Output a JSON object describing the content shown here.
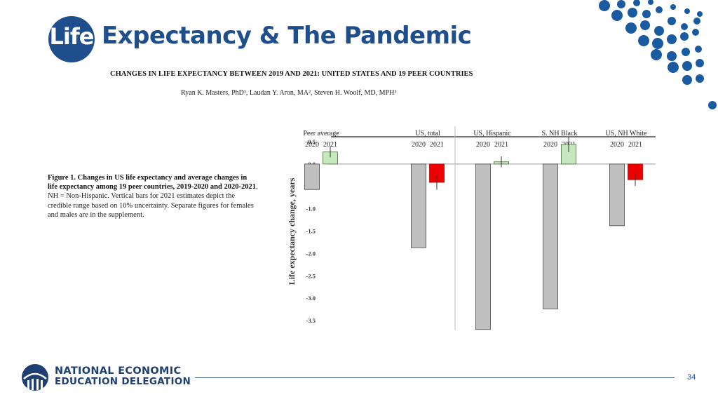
{
  "header": {
    "logo_word": "Life",
    "title_rest": "Expectancy & The Pandemic"
  },
  "paper": {
    "title": "CHANGES IN LIFE EXPECTANCY BETWEEN 2019 AND 2021: UNITED STATES AND 19 PEER COUNTRIES",
    "authors": "Ryan K. Masters, PhD¹, Laudan Y. Aron, MA², Steven H. Woolf, MD, MPH³"
  },
  "caption": {
    "bold": "Figure 1. Changes in US life expectancy and average changes in life expectancy among 19 peer countries, 2019-2020 and 2020-2021",
    "rest": ". NH = Non-Hispanic. Vertical bars for 2021 estimates depict the credible range based on 10% uncertainty. Separate figures for females and males are in the supplement."
  },
  "chart_data": {
    "type": "bar",
    "title": "",
    "xlabel": "",
    "ylabel": "Life expectancy change, years",
    "ylim": [
      -3.5,
      0.5
    ],
    "yticks": [
      "0.5",
      "0.0",
      "-0.5",
      "-1.0",
      "-1.5",
      "-2.0",
      "-2.5",
      "-3.0",
      "-3.5"
    ],
    "groups": [
      {
        "name": "Peer average",
        "labels": [
          "2020",
          "2021"
        ],
        "values": [
          -0.57,
          0.27
        ]
      },
      {
        "name": "US, total",
        "labels": [
          "2020",
          "2021"
        ],
        "values": [
          -1.87,
          -0.41
        ]
      },
      {
        "name": "US, Hispanic",
        "labels": [
          "2020",
          "2021"
        ],
        "values": [
          -3.7,
          0.05
        ]
      },
      {
        "name": "S. NH Black",
        "labels": [
          "2020",
          "2021"
        ],
        "values": [
          -3.24,
          0.44
        ]
      },
      {
        "name": "US, NH White",
        "labels": [
          "2020",
          "2021"
        ],
        "values": [
          -1.38,
          -0.35
        ]
      }
    ],
    "bar_colors": {
      "2020": "#c0c0c0",
      "2021_positive": "#c6e8bf",
      "2021_negative": "#ee0000"
    },
    "gridlines": false,
    "legend": "none"
  },
  "footer": {
    "org_line1": "NATIONAL ECONOMIC",
    "org_line2": "EDUCATION DELEGATION",
    "page_number": "34"
  },
  "colors": {
    "brand": "#1f4e8c",
    "dots": "#1a5aa0"
  }
}
